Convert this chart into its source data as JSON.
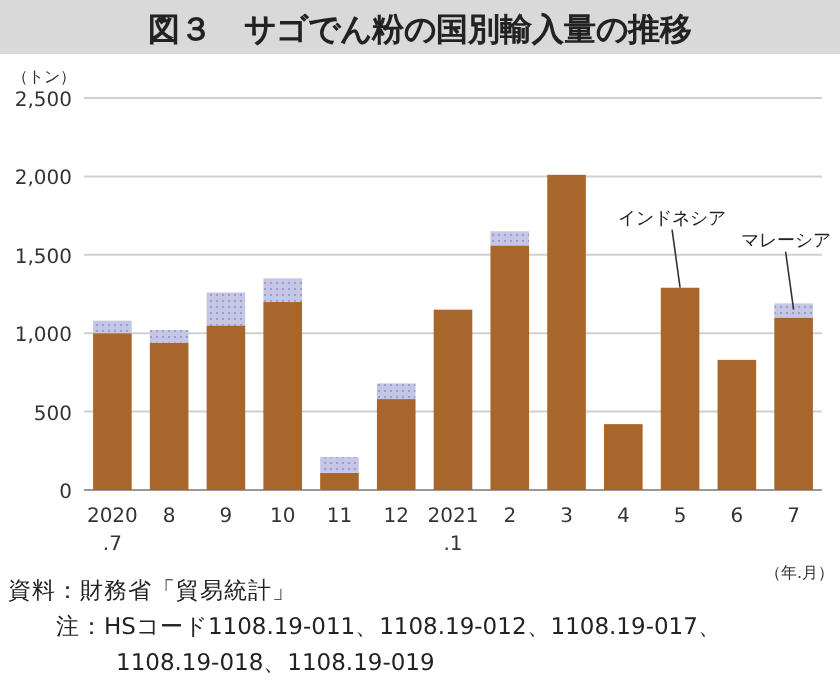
{
  "chart_data": {
    "type": "bar",
    "title": "図３　サゴでん粉の国別輸入量の推移",
    "ylabel": "（トン）",
    "xlabel": "（年.月）",
    "categories": [
      "2020\n.7",
      "8",
      "9",
      "10",
      "11",
      "12",
      "2021\n.1",
      "2",
      "3",
      "4",
      "5",
      "6",
      "7"
    ],
    "stacked": true,
    "series": [
      {
        "color": "#a8662b",
        "values": [
          1000,
          940,
          1050,
          1200,
          110,
          580,
          1150,
          1560,
          2010,
          420,
          1290,
          830,
          1100
        ]
      },
      {
        "color": "#c5c6e6",
        "values": [
          80,
          80,
          210,
          150,
          100,
          100,
          null,
          90,
          null,
          null,
          null,
          null,
          90
        ]
      }
    ],
    "ylim": [
      0,
      2500
    ],
    "yticks": [
      0,
      500,
      {
        "value": 1000,
        "label": "1,000"
      },
      {
        "value": 1500,
        "label": "1,500"
      },
      {
        "value": 2000,
        "label": "2,000"
      },
      {
        "value": 2500,
        "label": "2,500"
      }
    ],
    "grid": "y",
    "annotations": [
      {
        "text": "インドネシア",
        "x": "5",
        "y": 1290
      },
      {
        "text": "マレーシア",
        "x": "7",
        "y": 1150
      },
      "資料：財務省「貿易統計」",
      "注：HSコード1108.19-011、1108.19-012、1108.19-017、\n1108.19-018、1108.19-019"
    ]
  }
}
